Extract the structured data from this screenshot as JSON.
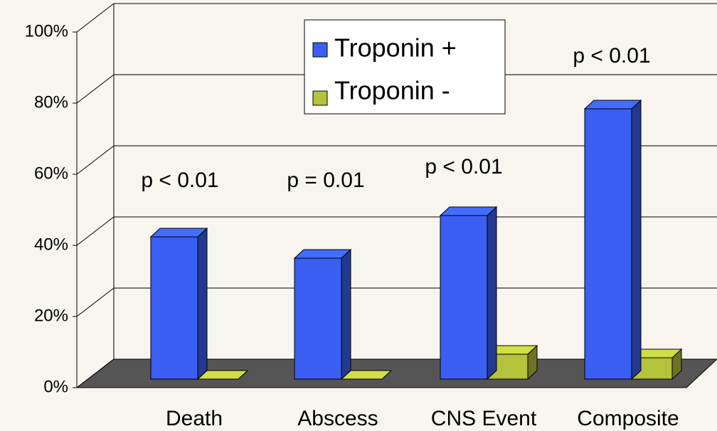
{
  "chart_data": {
    "type": "bar3d",
    "categories": [
      "Death",
      "Abscess",
      "CNS Event",
      "Composite"
    ],
    "series": [
      {
        "name": "Troponin +",
        "color": "#3a5ff2",
        "values": [
          40,
          34,
          46,
          76
        ]
      },
      {
        "name": "Troponin -",
        "color": "#b4c23c",
        "values": [
          0,
          0,
          7,
          6
        ]
      }
    ],
    "ylim": [
      0,
      100
    ],
    "yticks": [
      {
        "value": 0,
        "label": "0%"
      },
      {
        "value": 20,
        "label": "20%"
      },
      {
        "value": 40,
        "label": "40%"
      },
      {
        "value": 60,
        "label": "60%"
      },
      {
        "value": 80,
        "label": "80%"
      },
      {
        "value": 100,
        "label": "100%"
      }
    ],
    "grid": true,
    "annotations": [
      "p < 0.01",
      "p = 0.01",
      "p < 0.01",
      "p < 0.01"
    ]
  }
}
